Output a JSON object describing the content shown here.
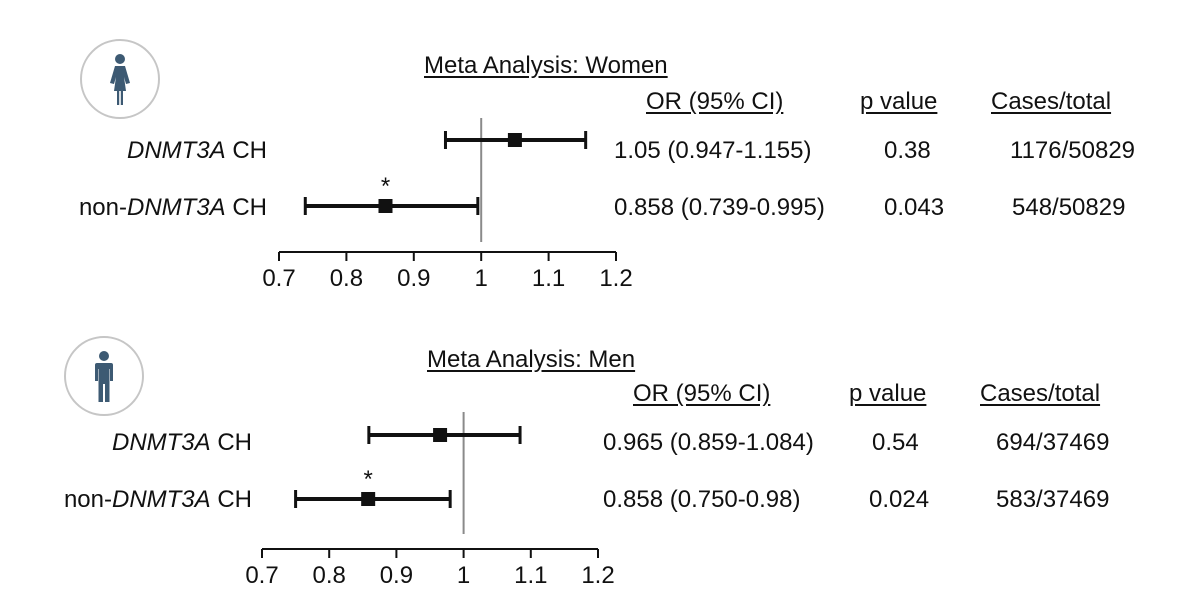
{
  "chart_data": [
    {
      "type": "forest",
      "title": "Meta Analysis: Women",
      "icon": "female-person-icon",
      "icon_color": "#3d5a73",
      "columns": [
        "OR (95% CI)",
        "p value",
        "Cases/total"
      ],
      "xticks": [
        0.7,
        0.8,
        0.9,
        1,
        1.1,
        1.2
      ],
      "xtick_labels": [
        "0.7",
        "0.8",
        "0.9",
        "1",
        "1.1",
        "1.2"
      ],
      "xlim": [
        0.7,
        1.2
      ],
      "reference_line": 1,
      "rows": [
        {
          "label_pre": "",
          "label_italic": "DNMT3A",
          "label_post": " CH",
          "or": 1.05,
          "lo": 0.947,
          "hi": 1.155,
          "or_text": "1.05 (0.947-1.155)",
          "p": "0.38",
          "cases": "1176/50829",
          "marker": ""
        },
        {
          "label_pre": "non-",
          "label_italic": "DNMT3A",
          "label_post": " CH",
          "or": 0.858,
          "lo": 0.739,
          "hi": 0.995,
          "or_text": "0.858 (0.739-0.995)",
          "p": "0.043",
          "cases": "548/50829",
          "marker": "*"
        }
      ]
    },
    {
      "type": "forest",
      "title": "Meta Analysis: Men",
      "icon": "male-person-icon",
      "icon_color": "#3d5a73",
      "columns": [
        "OR (95% CI)",
        "p value",
        "Cases/total"
      ],
      "xticks": [
        0.7,
        0.8,
        0.9,
        1,
        1.1,
        1.2
      ],
      "xtick_labels": [
        "0.7",
        "0.8",
        "0.9",
        "1",
        "1.1",
        "1.2"
      ],
      "xlim": [
        0.7,
        1.2
      ],
      "reference_line": 1,
      "rows": [
        {
          "label_pre": "",
          "label_italic": "DNMT3A",
          "label_post": " CH",
          "or": 0.965,
          "lo": 0.859,
          "hi": 1.084,
          "or_text": "0.965 (0.859-1.084)",
          "p": "0.54",
          "cases": "694/37469",
          "marker": ""
        },
        {
          "label_pre": "non-",
          "label_italic": "DNMT3A",
          "label_post": " CH",
          "or": 0.858,
          "lo": 0.75,
          "hi": 0.98,
          "or_text": "0.858 (0.750-0.98)",
          "p": "0.024",
          "cases": "583/37469",
          "marker": "*"
        }
      ]
    }
  ]
}
